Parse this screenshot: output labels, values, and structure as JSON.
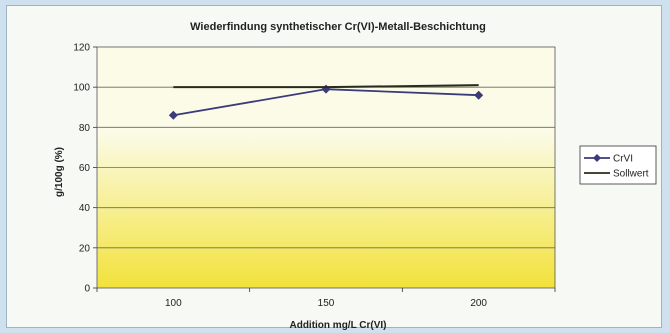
{
  "chart_data": {
    "type": "line",
    "title": "Wiederfindung synthetischer Cr(VI)-Metall-Beschichtung",
    "xlabel": "Addition mg/L Cr(VI)",
    "ylabel": "g/100g (%)",
    "categories": [
      "100",
      "150",
      "200"
    ],
    "ylim": [
      0,
      120
    ],
    "yticks": [
      "0",
      "20",
      "40",
      "60",
      "80",
      "100",
      "120"
    ],
    "grid": true,
    "legend_position": "right",
    "series": [
      {
        "name": "CrVI",
        "values": [
          86,
          99,
          96
        ],
        "color": "#3b3a7a",
        "marker": "diamond"
      },
      {
        "name": "Sollwert",
        "values": [
          100,
          100,
          101
        ],
        "color": "#2b2b1a",
        "marker": "none"
      }
    ],
    "colors": {
      "plot_top": "#fbfbe8",
      "plot_bottom": "#f2e23a",
      "gridline": "#6a6a5a"
    }
  }
}
